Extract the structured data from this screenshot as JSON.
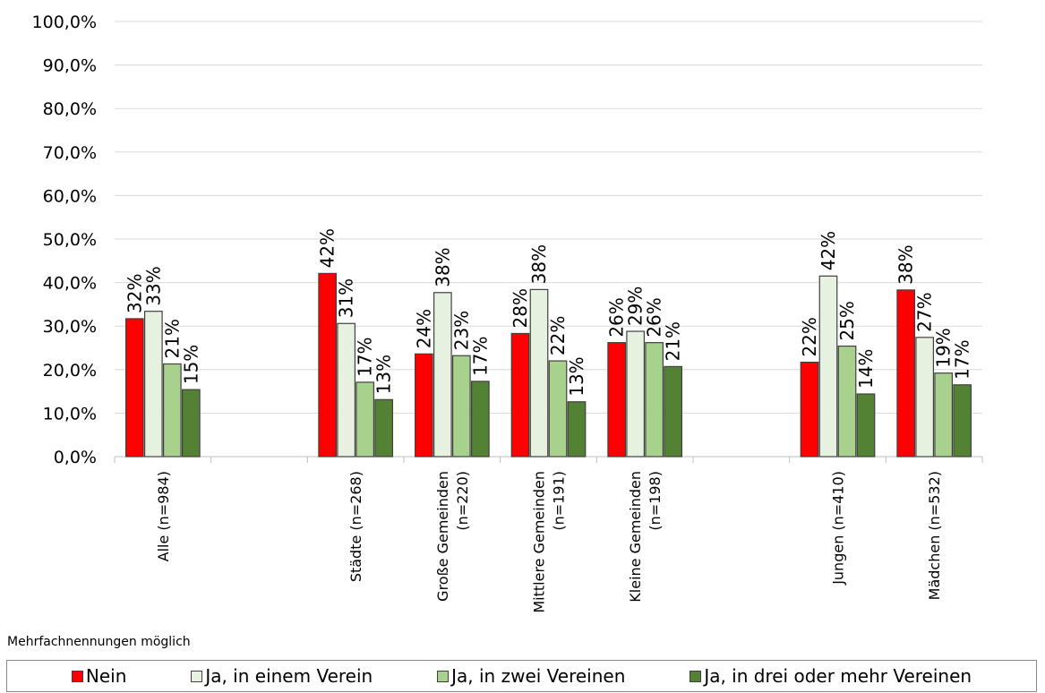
{
  "chart_data": {
    "type": "bar",
    "categories": [
      [
        "Alle (n=984)"
      ],
      [],
      [
        "Städte (n=268)"
      ],
      [
        "Große Gemeinden",
        "(n=220)"
      ],
      [
        "Mittlere Gemeinden",
        "(n=191)"
      ],
      [
        "Kleine Gemeinden",
        "(n=198)"
      ],
      [],
      [
        "Jungen (n=410)"
      ],
      [
        "Mädchen (n=532)"
      ]
    ],
    "series": [
      {
        "name": "Nein",
        "color": "#ff0000",
        "values": [
          31.7,
          null,
          42.1,
          23.6,
          28.3,
          26.2,
          null,
          21.7,
          38.3
        ],
        "labels": [
          "32%",
          "",
          "42%",
          "24%",
          "28%",
          "26%",
          "",
          "22%",
          "38%"
        ]
      },
      {
        "name": "Ja, in einem Verein",
        "color": "#e6f2df",
        "values": [
          33.4,
          null,
          30.6,
          37.7,
          38.4,
          28.8,
          null,
          41.5,
          27.4
        ],
        "labels": [
          "33%",
          "",
          "31%",
          "38%",
          "38%",
          "29%",
          "",
          "42%",
          "27%"
        ]
      },
      {
        "name": "Ja, in zwei Vereinen",
        "color": "#a9d18e",
        "values": [
          21.3,
          null,
          17.1,
          23.2,
          22.0,
          26.2,
          null,
          25.4,
          19.2
        ],
        "labels": [
          "21%",
          "",
          "17%",
          "23%",
          "22%",
          "26%",
          "",
          "25%",
          "19%"
        ]
      },
      {
        "name": "Ja, in drei oder mehr Vereinen",
        "color": "#548235",
        "values": [
          15.4,
          null,
          13.1,
          17.3,
          12.6,
          20.7,
          null,
          14.4,
          16.5
        ],
        "labels": [
          "15%",
          "",
          "13%",
          "17%",
          "13%",
          "21%",
          "",
          "14%",
          "17%"
        ]
      }
    ],
    "y_ticks": [
      "0,0%",
      "10,0%",
      "20,0%",
      "30,0%",
      "40,0%",
      "50,0%",
      "60,0%",
      "70,0%",
      "80,0%",
      "90,0%",
      "100,0%"
    ],
    "ylim": [
      0,
      100
    ],
    "grid": true,
    "legend_position": "bottom"
  },
  "note": "Mehrfachnennungen möglich"
}
